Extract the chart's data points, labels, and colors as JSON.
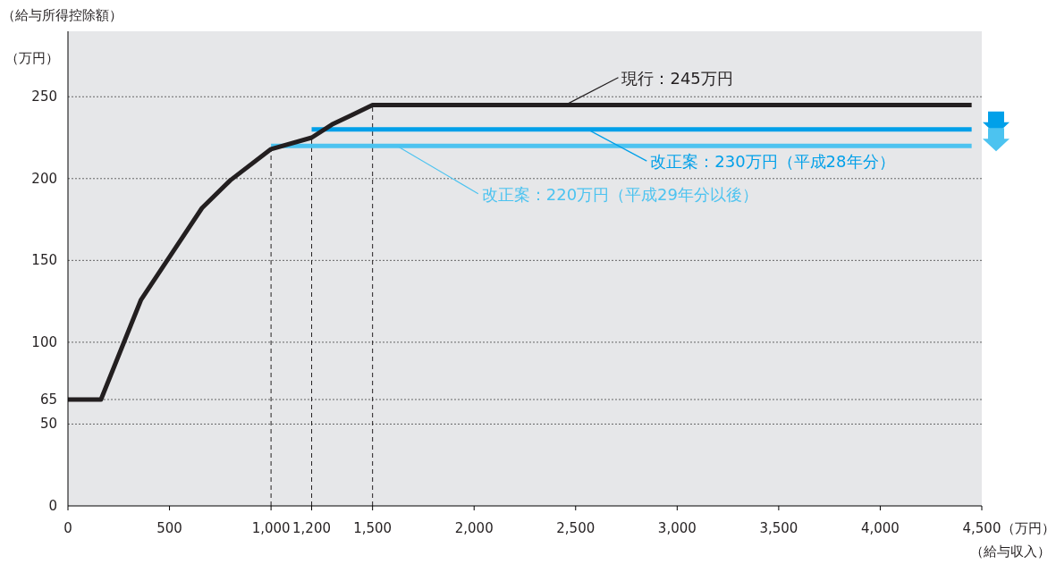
{
  "chart_data": {
    "type": "line",
    "title": "（給与所得控除額）",
    "ylabel": "（万円）",
    "xlabel": "（万円）",
    "annotations": [
      {
        "text": "現行：245万円",
        "x": 2450,
        "y": 245
      },
      {
        "text": "改正案：230万円（平成28年分）",
        "x": 2560,
        "y": 230
      },
      {
        "text": "改正案：220万円（平成29年分以後）",
        "x": 1620,
        "y": 220
      },
      "（給与収入）"
    ],
    "series": [
      {
        "color": "#231f20",
        "x": [
          0,
          162.5,
          360,
          660,
          800,
          1000,
          1200,
          1300,
          1400,
          1500,
          4450
        ],
        "values": [
          65,
          65,
          126,
          182,
          199,
          218,
          225,
          233,
          239,
          245,
          245
        ]
      },
      {
        "color": "#00a0e9",
        "x": [
          1200,
          4450
        ],
        "values": [
          230,
          230
        ]
      },
      {
        "color": "#4cc3f0",
        "x": [
          1000,
          4450
        ],
        "values": [
          220,
          220
        ]
      }
    ],
    "ref_lines": [
      {
        "axis": "x",
        "value": 1000,
        "line_style": "dashed",
        "color": "#231f20"
      },
      {
        "axis": "x",
        "value": 1200,
        "line_style": "dashed",
        "color": "#231f20"
      },
      {
        "axis": "x",
        "value": 1500,
        "line_style": "dashed",
        "color": "#231f20"
      }
    ],
    "xlim": [
      0,
      4500
    ],
    "ylim": [
      0,
      290
    ],
    "xticks": [
      0,
      500,
      {
        "value": 1000,
        "label": "1,000"
      },
      {
        "value": 1200,
        "label": "1,200"
      },
      {
        "value": 1500,
        "label": "1,500"
      },
      {
        "value": 2000,
        "label": "2,000"
      },
      {
        "value": 2500,
        "label": "2,500"
      },
      {
        "value": 3000,
        "label": "3,000"
      },
      {
        "value": 3500,
        "label": "3,500"
      },
      {
        "value": 4000,
        "label": "4,000"
      },
      {
        "value": 4500,
        "label": "4,500"
      }
    ],
    "yticks": [
      0,
      50,
      65,
      100,
      150,
      200,
      250
    ],
    "grid": "y",
    "line_style": "solid",
    "marker": "none"
  }
}
